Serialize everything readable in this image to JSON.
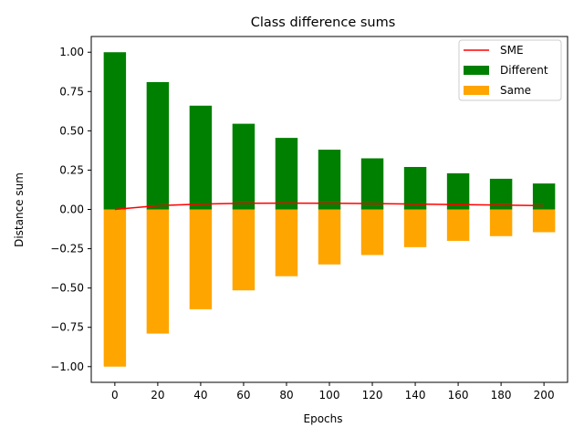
{
  "chart_data": {
    "type": "bar",
    "title": "Class difference sums",
    "xlabel": "Epochs",
    "ylabel": "Distance sum",
    "x": [
      0,
      20,
      40,
      60,
      80,
      100,
      120,
      140,
      160,
      180,
      200
    ],
    "xticks": [
      "0",
      "20",
      "40",
      "60",
      "80",
      "100",
      "120",
      "140",
      "160",
      "180",
      "200"
    ],
    "yticks": [
      -1.0,
      -0.75,
      -0.5,
      -0.25,
      0.0,
      0.25,
      0.5,
      0.75,
      1.0
    ],
    "ytick_labels": [
      "−1.00",
      "−0.75",
      "−0.50",
      "−0.25",
      "0.00",
      "0.25",
      "0.50",
      "0.75",
      "1.00"
    ],
    "ylim": [
      -1.1,
      1.1
    ],
    "xlim": [
      -11,
      211
    ],
    "bar_width": 10.4,
    "legend_position": "upper right",
    "series": [
      {
        "name": "SME",
        "kind": "line",
        "color": "#ff0000",
        "values": [
          0.0,
          0.024,
          0.034,
          0.039,
          0.04,
          0.039,
          0.037,
          0.034,
          0.031,
          0.028,
          0.024
        ]
      },
      {
        "name": "Different",
        "kind": "bar",
        "color": "#008000",
        "values": [
          1.0,
          0.81,
          0.66,
          0.545,
          0.455,
          0.38,
          0.325,
          0.27,
          0.23,
          0.195,
          0.165
        ]
      },
      {
        "name": "Same",
        "kind": "bar",
        "color": "#ffa500",
        "values": [
          -1.0,
          -0.79,
          -0.635,
          -0.515,
          -0.425,
          -0.35,
          -0.29,
          -0.24,
          -0.2,
          -0.17,
          -0.145
        ]
      }
    ]
  }
}
